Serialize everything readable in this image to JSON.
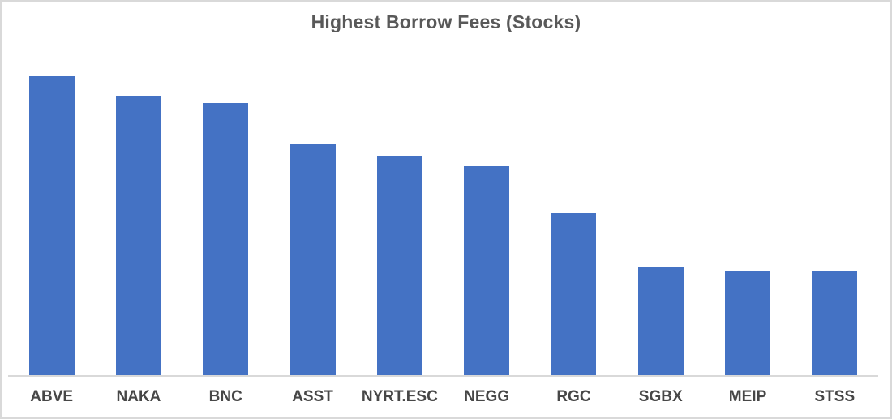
{
  "chart_data": {
    "type": "bar",
    "title": "Highest Borrow Fees (Stocks)",
    "categories": [
      "ABVE",
      "NAKA",
      "BNC",
      "ASST",
      "NYRT.ESC",
      "NEGG",
      "RGC",
      "SGBX",
      "MEIP",
      "STSS"
    ],
    "values": [
      100,
      93.3,
      91.1,
      77.4,
      73.6,
      70.1,
      54.2,
      36.4,
      35,
      35
    ],
    "values_unit": "relative height (chart displays no y-axis, gridlines or data labels)",
    "xlabel": "",
    "ylabel": "",
    "ylim": [
      0,
      110
    ],
    "grid": false,
    "legend": false,
    "colors": {
      "bar": "#4472C4",
      "axis_line": "#d9d9d9",
      "title_text": "#595959",
      "tick_label_text": "#474747",
      "frame_border": "#d9d9d9",
      "background": "#ffffff"
    }
  }
}
